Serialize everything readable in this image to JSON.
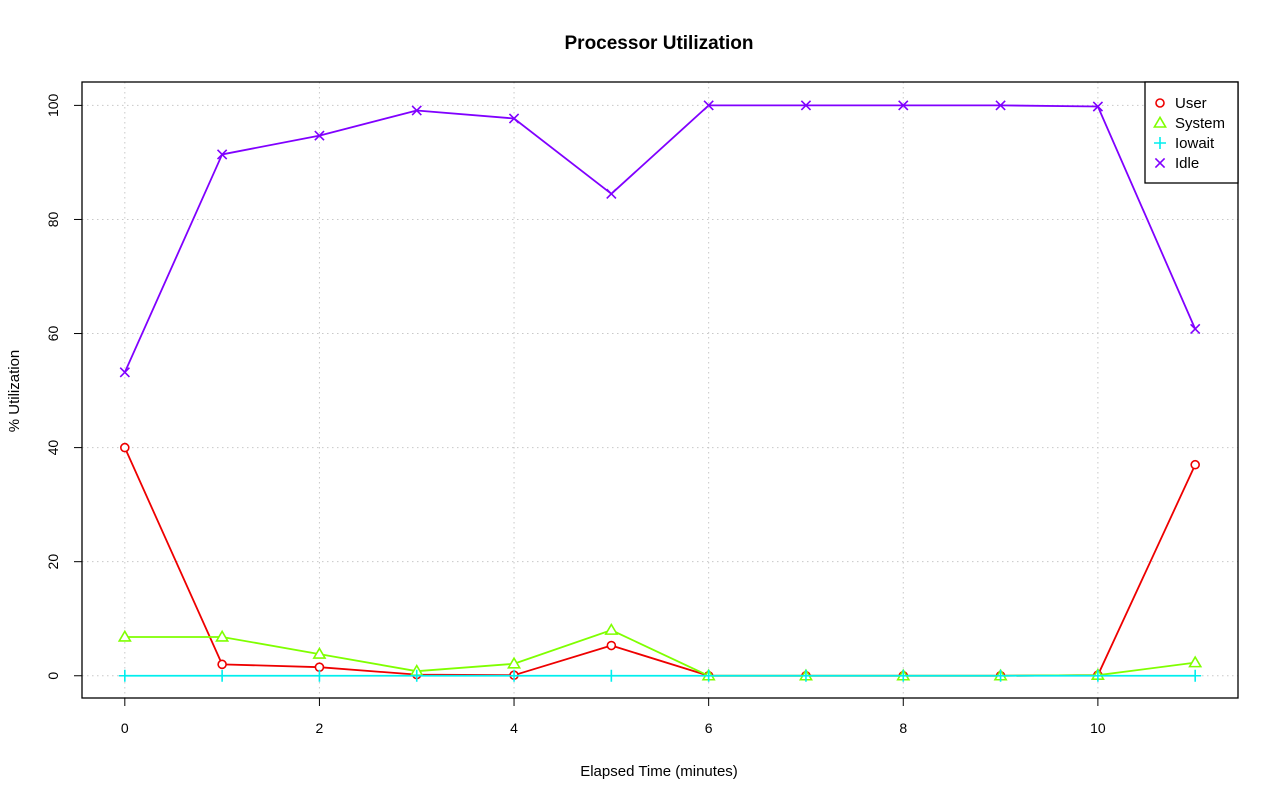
{
  "chart_data": {
    "type": "line",
    "title": "Processor Utilization",
    "xlabel": "Elapsed Time (minutes)",
    "ylabel": "% Utilization",
    "x": [
      0,
      1,
      2,
      3,
      4,
      5,
      6,
      7,
      8,
      9,
      10,
      11
    ],
    "xlim": [
      -0.44,
      11.44
    ],
    "ylim": [
      -3.9,
      104.1
    ],
    "xticks": [
      0,
      2,
      4,
      6,
      8,
      10
    ],
    "yticks": [
      0,
      20,
      40,
      60,
      80,
      100
    ],
    "grid": true,
    "legend_position": "top-right",
    "series": [
      {
        "name": "User",
        "color": "#ee0000",
        "marker": "circle",
        "values": [
          40,
          2,
          1.5,
          0.2,
          0.1,
          5.3,
          0,
          0,
          0,
          0,
          0.1,
          37
        ]
      },
      {
        "name": "System",
        "color": "#7fff00",
        "marker": "triangle",
        "values": [
          6.8,
          6.8,
          3.8,
          0.8,
          2.1,
          8,
          0,
          0,
          0,
          0,
          0.1,
          2.3
        ]
      },
      {
        "name": "Iowait",
        "color": "#00eeee",
        "marker": "plus",
        "values": [
          0,
          0,
          0,
          0,
          0,
          0,
          0,
          0,
          0,
          0,
          0,
          0
        ]
      },
      {
        "name": "Idle",
        "color": "#8000ff",
        "marker": "cross",
        "values": [
          53.2,
          91.4,
          94.7,
          99.1,
          97.7,
          84.5,
          100,
          100,
          100,
          100,
          99.8,
          60.8
        ]
      }
    ]
  }
}
